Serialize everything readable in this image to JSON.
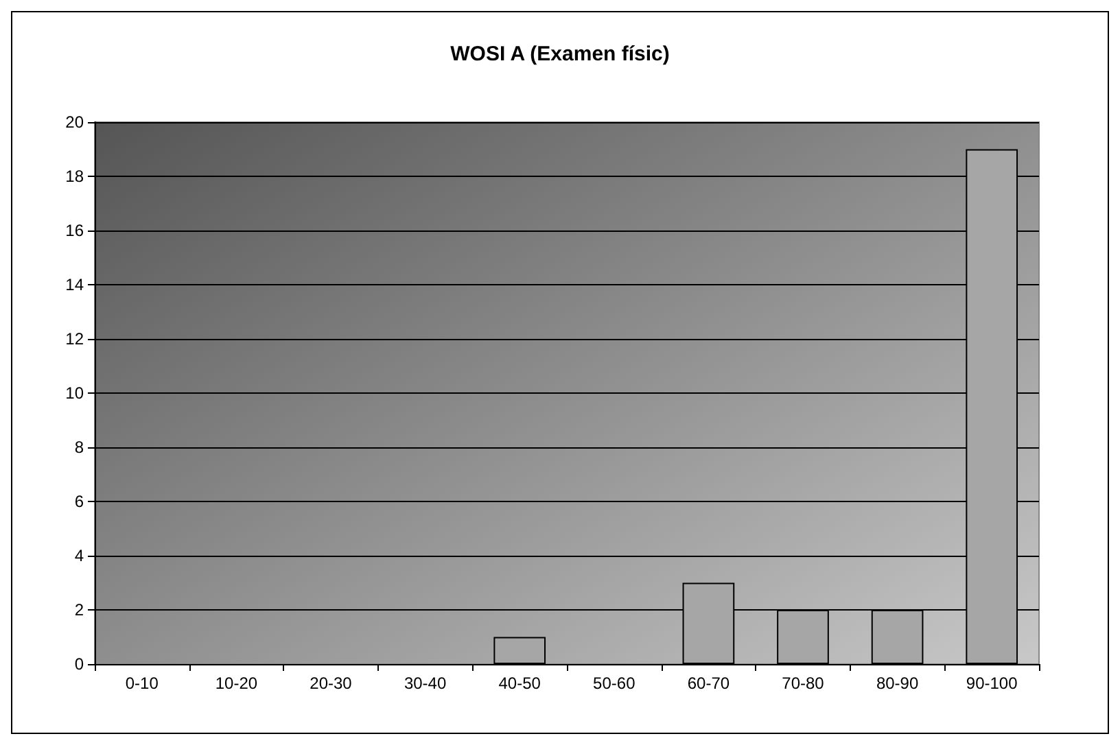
{
  "chart_data": {
    "type": "bar",
    "title": "WOSI A (Examen físic)",
    "categories": [
      "0-10",
      "10-20",
      "20-30",
      "30-40",
      "40-50",
      "50-60",
      "60-70",
      "70-80",
      "80-90",
      "90-100"
    ],
    "values": [
      0,
      0,
      0,
      0,
      1,
      0,
      3,
      2,
      2,
      19
    ],
    "color": "#a6a6a6",
    "ylim": [
      0,
      20
    ],
    "yticks": [
      0,
      2,
      4,
      6,
      8,
      10,
      12,
      14,
      16,
      18,
      20
    ],
    "grid": "y"
  }
}
